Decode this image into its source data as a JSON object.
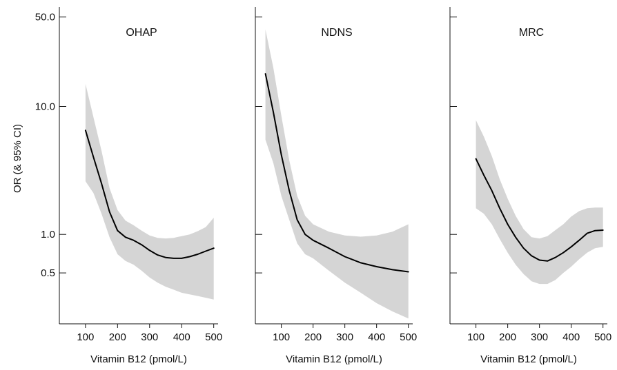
{
  "chart_data": {
    "type": "line",
    "ylabel": "OR (& 95% CI)",
    "y_scale": "log",
    "y_ticks": [
      0.5,
      1.0,
      10.0,
      50.0
    ],
    "y_tick_labels": [
      "0.5",
      "1.0",
      "10.0",
      "50.0"
    ],
    "ylim": [
      0.2,
      60.0
    ],
    "colors": {
      "line": "#000000",
      "band": "#b9b9b9"
    },
    "panels": [
      {
        "title": "OHAP",
        "xlabel": "Vitamin B12 (pmol/L)",
        "x_ticks": [
          100,
          200,
          300,
          400,
          500
        ],
        "xlim": [
          40,
          505
        ],
        "series": {
          "x": [
            100,
            125,
            150,
            175,
            200,
            225,
            250,
            275,
            300,
            325,
            350,
            375,
            400,
            425,
            450,
            475,
            500
          ],
          "or": [
            6.5,
            4.0,
            2.5,
            1.5,
            1.07,
            0.95,
            0.9,
            0.83,
            0.75,
            0.69,
            0.66,
            0.65,
            0.65,
            0.67,
            0.7,
            0.74,
            0.78
          ],
          "lower": [
            2.6,
            2.1,
            1.45,
            0.95,
            0.7,
            0.62,
            0.58,
            0.52,
            0.46,
            0.42,
            0.39,
            0.37,
            0.35,
            0.34,
            0.33,
            0.32,
            0.31
          ],
          "upper": [
            15.0,
            8.2,
            4.5,
            2.3,
            1.55,
            1.28,
            1.18,
            1.07,
            0.98,
            0.94,
            0.93,
            0.94,
            0.97,
            1.0,
            1.06,
            1.14,
            1.35
          ]
        }
      },
      {
        "title": "NDNS",
        "xlabel": "Vitamin B12 (pmol/L)",
        "x_ticks": [
          100,
          200,
          300,
          400,
          500
        ],
        "xlim": [
          40,
          505
        ],
        "series": {
          "x": [
            50,
            75,
            100,
            125,
            150,
            175,
            200,
            250,
            300,
            350,
            400,
            450,
            500
          ],
          "or": [
            18.0,
            9.0,
            4.2,
            2.2,
            1.3,
            1.0,
            0.9,
            0.78,
            0.67,
            0.6,
            0.56,
            0.53,
            0.51
          ],
          "lower": [
            5.5,
            3.6,
            2.0,
            1.3,
            0.85,
            0.7,
            0.65,
            0.52,
            0.42,
            0.35,
            0.29,
            0.25,
            0.22
          ],
          "upper": [
            40.0,
            20.0,
            8.5,
            3.8,
            2.0,
            1.4,
            1.2,
            1.05,
            0.98,
            0.96,
            0.98,
            1.05,
            1.2
          ]
        }
      },
      {
        "title": "MRC",
        "xlabel": "Vitamin B12 (pmol/L)",
        "x_ticks": [
          100,
          200,
          300,
          400,
          500
        ],
        "xlim": [
          40,
          505
        ],
        "series": {
          "x": [
            100,
            125,
            150,
            175,
            200,
            225,
            250,
            275,
            300,
            325,
            350,
            375,
            400,
            425,
            450,
            475,
            500
          ],
          "or": [
            3.9,
            2.9,
            2.2,
            1.6,
            1.2,
            0.95,
            0.78,
            0.68,
            0.63,
            0.62,
            0.66,
            0.72,
            0.8,
            0.9,
            1.02,
            1.07,
            1.08
          ],
          "lower": [
            1.6,
            1.45,
            1.2,
            0.92,
            0.72,
            0.58,
            0.49,
            0.43,
            0.41,
            0.41,
            0.44,
            0.5,
            0.56,
            0.64,
            0.72,
            0.78,
            0.8
          ],
          "upper": [
            7.8,
            5.8,
            4.1,
            2.7,
            1.9,
            1.4,
            1.1,
            0.95,
            0.93,
            0.97,
            1.08,
            1.2,
            1.38,
            1.52,
            1.6,
            1.62,
            1.62
          ]
        }
      }
    ]
  }
}
